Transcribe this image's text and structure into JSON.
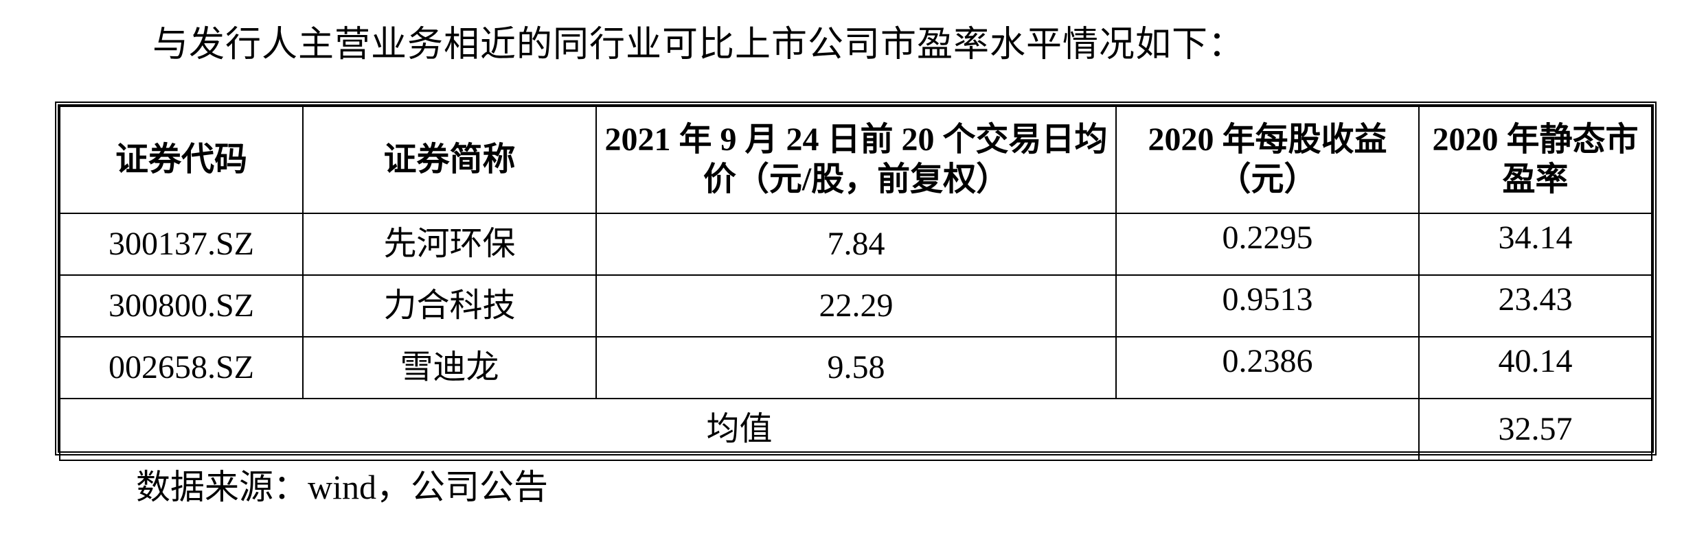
{
  "intro": "与发行人主营业务相近的同行业可比上市公司市盈率水平情况如下：",
  "table": {
    "headers": [
      "证券代码",
      "证券简称",
      "2021 年 9 月 24 日前 20 个交易日均价（元/股，前复权）",
      "2020 年每股收益（元）",
      "2020 年静态市盈率"
    ],
    "rows": [
      [
        "300137.SZ",
        "先河环保",
        "7.84",
        "0.2295",
        "34.14"
      ],
      [
        "300800.SZ",
        "力合科技",
        "22.29",
        "0.9513",
        "23.43"
      ],
      [
        "002658.SZ",
        "雪迪龙",
        "9.58",
        "0.2386",
        "40.14"
      ]
    ],
    "average_label": "均值",
    "average_value": "32.57"
  },
  "source": "数据来源：wind，公司公告"
}
